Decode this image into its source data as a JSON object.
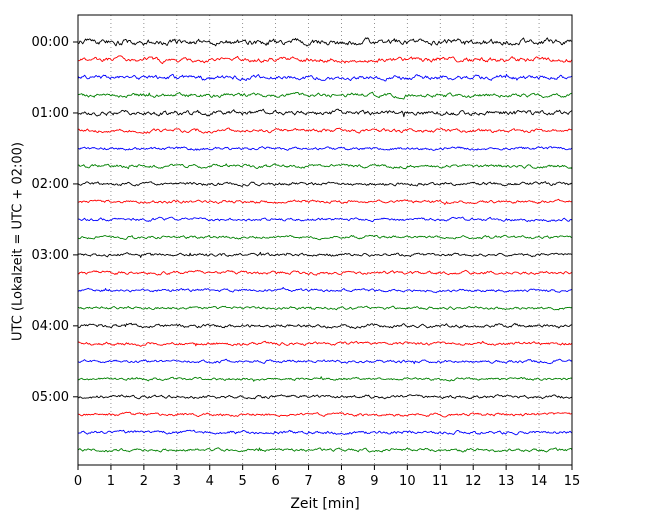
{
  "figure": {
    "background": "#ffffff",
    "border_color": "#000000",
    "grid_color": "#777777",
    "grid_style": "vertical-dotted"
  },
  "chart_data": {
    "type": "line",
    "title": "",
    "xlabel": "Zeit  [min]",
    "ylabel": "UTC (Lokalzeit = UTC + 02:00)",
    "xlim": [
      0,
      15
    ],
    "minutes_per_line": 15,
    "x_tick_labels": [
      "0",
      "1",
      "2",
      "3",
      "4",
      "5",
      "6",
      "7",
      "8",
      "9",
      "10",
      "11",
      "12",
      "13",
      "14",
      "15"
    ],
    "y_hour_labels": [
      "00:00",
      "01:00",
      "02:00",
      "03:00",
      "04:00",
      "05:00"
    ],
    "grid": "vertical-dotted",
    "legend": "none",
    "trace_color_cycle": [
      "#000000",
      "#ff0000",
      "#0000ff",
      "#008000"
    ],
    "traces": [
      {
        "start_time": "00:00",
        "color": "#000000",
        "amplitude": 2.6,
        "seed": 11
      },
      {
        "start_time": "00:15",
        "color": "#ff0000",
        "amplitude": 2.0,
        "seed": 12
      },
      {
        "start_time": "00:30",
        "color": "#0000ff",
        "amplitude": 1.9,
        "seed": 13
      },
      {
        "start_time": "00:45",
        "color": "#008000",
        "amplitude": 1.7,
        "seed": 14
      },
      {
        "start_time": "01:00",
        "color": "#000000",
        "amplitude": 2.1,
        "seed": 15
      },
      {
        "start_time": "01:15",
        "color": "#ff0000",
        "amplitude": 1.5,
        "seed": 16
      },
      {
        "start_time": "01:30",
        "color": "#0000ff",
        "amplitude": 1.3,
        "seed": 17
      },
      {
        "start_time": "01:45",
        "color": "#008000",
        "amplitude": 1.4,
        "seed": 18
      },
      {
        "start_time": "02:00",
        "color": "#000000",
        "amplitude": 1.4,
        "seed": 19
      },
      {
        "start_time": "02:15",
        "color": "#ff0000",
        "amplitude": 1.3,
        "seed": 20
      },
      {
        "start_time": "02:30",
        "color": "#0000ff",
        "amplitude": 1.3,
        "seed": 21
      },
      {
        "start_time": "02:45",
        "color": "#008000",
        "amplitude": 1.2,
        "seed": 22
      },
      {
        "start_time": "03:00",
        "color": "#000000",
        "amplitude": 1.3,
        "seed": 23
      },
      {
        "start_time": "03:15",
        "color": "#ff0000",
        "amplitude": 1.4,
        "seed": 24
      },
      {
        "start_time": "03:30",
        "color": "#0000ff",
        "amplitude": 1.2,
        "seed": 25
      },
      {
        "start_time": "03:45",
        "color": "#008000",
        "amplitude": 1.2,
        "seed": 26
      },
      {
        "start_time": "04:00",
        "color": "#000000",
        "amplitude": 1.5,
        "seed": 27
      },
      {
        "start_time": "04:15",
        "color": "#ff0000",
        "amplitude": 1.4,
        "seed": 28
      },
      {
        "start_time": "04:30",
        "color": "#0000ff",
        "amplitude": 1.3,
        "seed": 29
      },
      {
        "start_time": "04:45",
        "color": "#008000",
        "amplitude": 1.2,
        "seed": 30
      },
      {
        "start_time": "05:00",
        "color": "#000000",
        "amplitude": 1.4,
        "seed": 31
      },
      {
        "start_time": "05:15",
        "color": "#ff0000",
        "amplitude": 1.3,
        "seed": 32
      },
      {
        "start_time": "05:30",
        "color": "#0000ff",
        "amplitude": 1.4,
        "seed": 33
      },
      {
        "start_time": "05:45",
        "color": "#008000",
        "amplitude": 1.3,
        "seed": 34
      }
    ]
  }
}
